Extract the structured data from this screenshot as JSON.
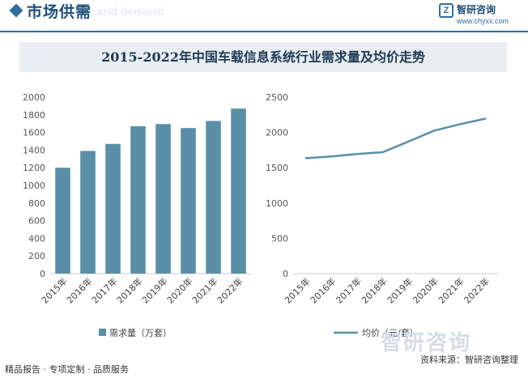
{
  "header": {
    "section_title": "市场供需",
    "section_subtitle": "and demand"
  },
  "logo": {
    "name": "智研咨询",
    "url": "www.chyxx.com"
  },
  "colors": {
    "bar": "#5b8fa8",
    "line": "#5b8fa8",
    "title_band": "#e9eef3",
    "brand": "#2f6f9f"
  },
  "chart_data": [
    {
      "type": "bar",
      "title": "2015-2022年中国车载信息系统行业需求量及均价走势",
      "categories": [
        "2015年",
        "2016年",
        "2017年",
        "2018年",
        "2019年",
        "2020年",
        "2021年",
        "2022年"
      ],
      "series": [
        {
          "name": "需求量（万套）",
          "values": [
            1200,
            1390,
            1470,
            1670,
            1695,
            1650,
            1730,
            1870
          ]
        }
      ],
      "ylim": [
        0,
        2000
      ],
      "yticks": [
        0,
        200,
        400,
        600,
        800,
        1000,
        1200,
        1400,
        1600,
        1800,
        2000
      ],
      "grid": false,
      "legend": "bottom"
    },
    {
      "type": "line",
      "categories": [
        "2015年",
        "2016年",
        "2017年",
        "2018年",
        "2019年",
        "2020年",
        "2021年",
        "2022年"
      ],
      "series": [
        {
          "name": "均价（元/套）",
          "values": [
            1635,
            1660,
            1695,
            1720,
            1870,
            2025,
            2115,
            2195
          ]
        }
      ],
      "ylim": [
        0,
        2500
      ],
      "yticks": [
        0,
        500,
        1000,
        1500,
        2000,
        2500
      ],
      "grid": false,
      "legend": "bottom"
    }
  ],
  "watermark": {
    "text": "智研咨询"
  },
  "footer": {
    "left": "精品报告 · 专项定制 · 品质服务",
    "right": "资料来源：智研咨询整理"
  }
}
